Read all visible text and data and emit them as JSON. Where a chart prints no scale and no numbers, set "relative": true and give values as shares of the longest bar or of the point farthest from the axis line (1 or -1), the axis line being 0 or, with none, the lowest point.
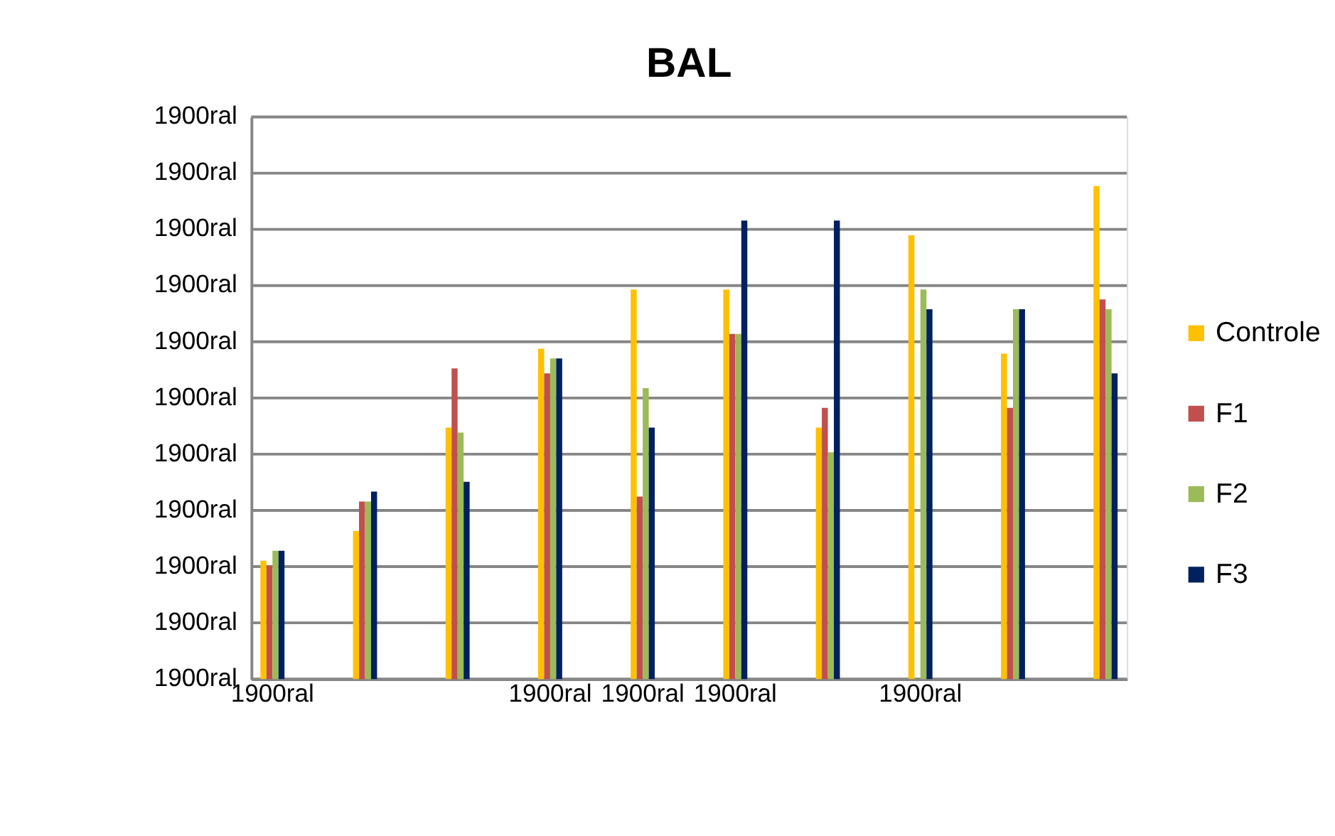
{
  "chart_data": {
    "type": "bar",
    "title": "BAL",
    "relative": true,
    "categories": [
      "1900ral",
      null,
      null,
      "1900ral",
      "1900ral",
      "1900ral",
      null,
      "1900ral",
      null,
      null
    ],
    "series": [
      {
        "name": "Controle",
        "color": "#ffc000",
        "values": [
          0.24,
          0.3,
          0.51,
          0.67,
          0.79,
          0.79,
          0.51,
          0.9,
          0.66,
          1
        ]
      },
      {
        "name": "F1",
        "color": "#c0504d",
        "values": [
          0.23,
          0.36,
          0.63,
          0.62,
          0.37,
          0.7,
          0.55,
          null,
          0.55,
          0.77
        ]
      },
      {
        "name": "F2",
        "color": "#9bbb59",
        "values": [
          0.26,
          0.36,
          0.5,
          0.65,
          0.59,
          0.7,
          0.46,
          0.79,
          0.75,
          0.75
        ]
      },
      {
        "name": "F3",
        "color": "#002060",
        "values": [
          0.26,
          0.38,
          0.4,
          0.65,
          0.51,
          0.93,
          0.93,
          0.75,
          0.75,
          0.62
        ]
      }
    ],
    "annotations": [
      "1900ral",
      "1900ral",
      "1900ral",
      "1900ral",
      "1900ral",
      "1900ral",
      "1900ral",
      "1900ral",
      "1900ral",
      "1900ral",
      "1900ral"
    ],
    "grid": "y",
    "legend": "right"
  }
}
